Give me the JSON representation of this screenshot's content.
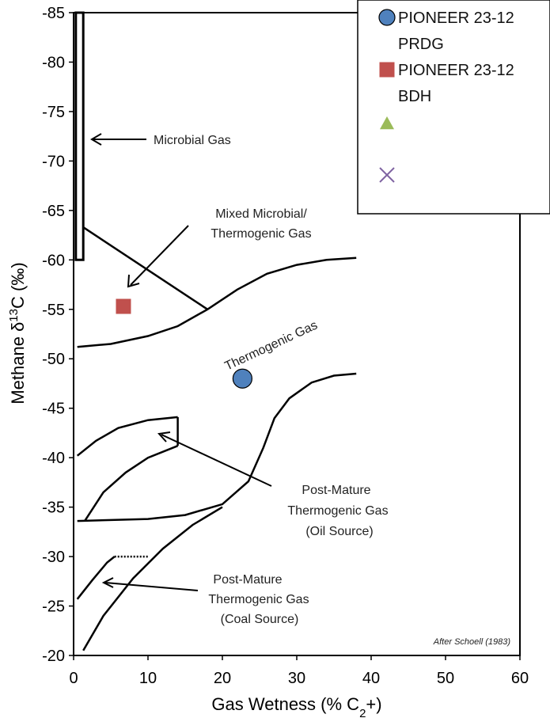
{
  "chart_data": {
    "type": "scatter",
    "xlabel": "Gas Wetness (% C₂+)",
    "ylabel": "Methane δ¹³C (‰)",
    "xlim": [
      0,
      60
    ],
    "ylim": [
      -20,
      -85
    ],
    "x_ticks": [
      "0",
      "10",
      "20",
      "30",
      "40",
      "50",
      "60"
    ],
    "y_ticks": [
      "-20",
      "-25",
      "-30",
      "-35",
      "-40",
      "-45",
      "-50",
      "-55",
      "-60",
      "-65",
      "-70",
      "-75",
      "-80",
      "-85"
    ],
    "grid": false,
    "legend_position": "top-right",
    "series": [
      {
        "name": "PIONEER 23-12 PRDG",
        "marker": "circle",
        "color": "#4f81bd",
        "points": [
          {
            "x": 22.7,
            "y": -48.0
          }
        ]
      },
      {
        "name": "PIONEER 23-12 BDH",
        "marker": "square",
        "color": "#c0504d",
        "points": [
          {
            "x": 6.7,
            "y": -55.3
          }
        ]
      },
      {
        "name": "",
        "marker": "triangle",
        "color": "#9bbb59",
        "points": []
      },
      {
        "name": "",
        "marker": "x",
        "color": "#8064a2",
        "points": []
      }
    ],
    "legend_entries": [
      {
        "line1": "PIONEER 23-12",
        "line2": "PRDG",
        "marker": "circle",
        "color": "#4f81bd"
      },
      {
        "line1": "PIONEER 23-12",
        "line2": "BDH",
        "marker": "square",
        "color": "#c0504d"
      },
      {
        "line1": "",
        "line2": "",
        "marker": "triangle",
        "color": "#9bbb59"
      },
      {
        "line1": "",
        "line2": "",
        "marker": "x",
        "color": "#8064a2"
      }
    ],
    "annotations": {
      "microbial": "Microbial Gas",
      "mixed_line1": "Mixed Microbial/",
      "mixed_line2": "Thermogenic Gas",
      "thermogenic": "Thermogenic Gas",
      "pm_oil_line1": "Post-Mature",
      "pm_oil_line2": "Thermogenic Gas",
      "pm_oil_line3": "(Oil Source)",
      "pm_coal_line1": "Post-Mature",
      "pm_coal_line2": "Thermogenic Gas",
      "pm_coal_line3": "(Coal Source)",
      "credit": "After Schoell (1983)"
    },
    "boundaries": {
      "microbial_box": [
        [
          0.3,
          -85
        ],
        [
          1.3,
          -85
        ],
        [
          1.3,
          -60
        ],
        [
          0.3,
          -60
        ]
      ],
      "mixed_line": [
        [
          1.3,
          -63.3
        ],
        [
          18,
          -55
        ]
      ],
      "thermogenic_upper": [
        [
          0.5,
          -51.2
        ],
        [
          5,
          -51.5
        ],
        [
          10,
          -52.3
        ],
        [
          14,
          -53.3
        ],
        [
          18,
          -55
        ],
        [
          22,
          -57
        ],
        [
          26,
          -58.6
        ],
        [
          30,
          -59.5
        ],
        [
          34,
          -60
        ],
        [
          38,
          -60.2
        ]
      ],
      "thermogenic_lower": [
        [
          0.5,
          -33.6
        ],
        [
          10,
          -33.8
        ],
        [
          15,
          -34.2
        ],
        [
          20,
          -35.3
        ],
        [
          23.5,
          -37.6
        ],
        [
          25.5,
          -41
        ],
        [
          27,
          -44
        ],
        [
          29,
          -46
        ],
        [
          32,
          -47.6
        ],
        [
          35,
          -48.3
        ],
        [
          38,
          -48.5
        ]
      ],
      "oil_box_top": [
        [
          0.5,
          -40.2
        ],
        [
          3,
          -41.7
        ],
        [
          6,
          -43
        ],
        [
          10,
          -43.8
        ],
        [
          14,
          -44.1
        ]
      ],
      "oil_box_right": [
        [
          14,
          -44.1
        ],
        [
          14,
          -41.2
        ]
      ],
      "oil_box_bottom": [
        [
          14,
          -41.2
        ],
        [
          10,
          -40
        ],
        [
          7,
          -38.5
        ],
        [
          4,
          -36.5
        ],
        [
          1.5,
          -33.6
        ]
      ],
      "coal_box_top": [
        [
          0.5,
          -25.7
        ],
        [
          2.5,
          -27.6
        ],
        [
          4.5,
          -29.4
        ],
        [
          5.5,
          -30
        ]
      ],
      "coal_box_flat": [
        [
          5.5,
          -30
        ],
        [
          10,
          -30
        ]
      ],
      "coal_box_lower": [
        [
          1.3,
          -20.5
        ],
        [
          4,
          -24
        ],
        [
          8,
          -27.8
        ],
        [
          12,
          -30.8
        ],
        [
          16,
          -33.2
        ],
        [
          20,
          -35
        ]
      ]
    }
  }
}
